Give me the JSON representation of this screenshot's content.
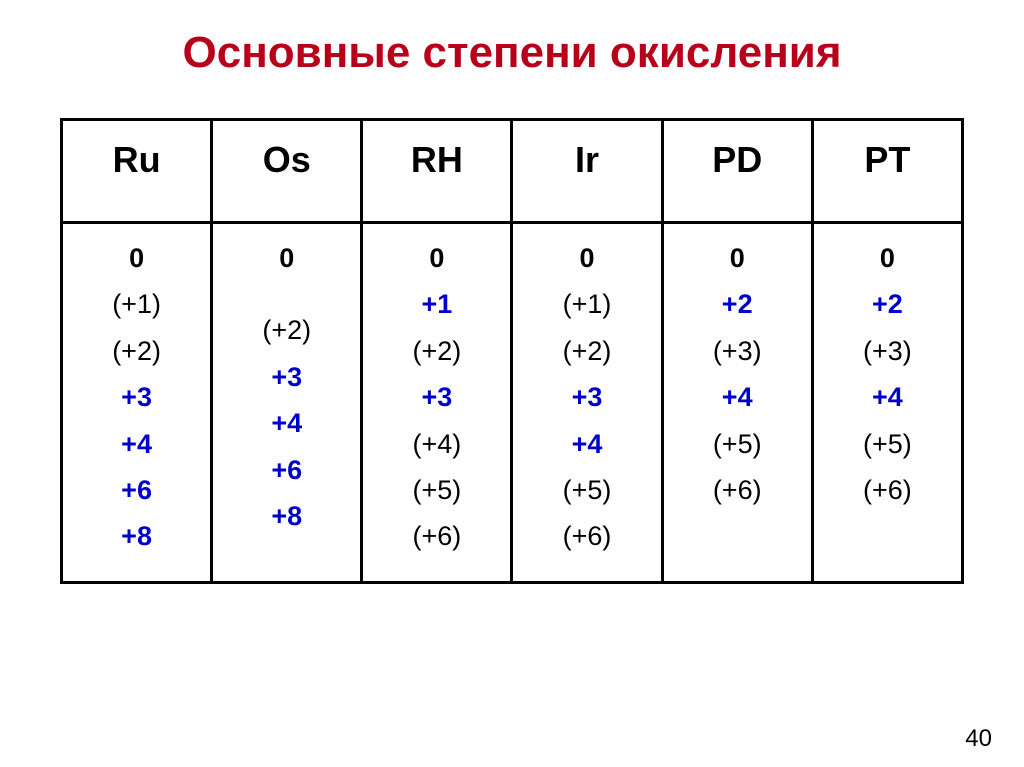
{
  "title": "Основные степени окисления",
  "page_number": "40",
  "colors": {
    "title": "#b8001a",
    "major": "#0000cc",
    "text": "#000000",
    "border": "#000000",
    "background": "#ffffff"
  },
  "table": {
    "columns": [
      "Ru",
      "Os",
      "RH",
      "Ir",
      "PD",
      "PT"
    ],
    "cells": [
      {
        "values": [
          {
            "text": "0",
            "style": "zero"
          },
          {
            "text": "(+1)",
            "style": "minor"
          },
          {
            "text": "(+2)",
            "style": "minor"
          },
          {
            "text": "+3",
            "style": "major"
          },
          {
            "text": "+4",
            "style": "major"
          },
          {
            "text": "+6",
            "style": "major"
          },
          {
            "text": "+8",
            "style": "major"
          }
        ]
      },
      {
        "values": [
          {
            "text": "0",
            "style": "zero"
          },
          {
            "text": "",
            "style": "spacer"
          },
          {
            "text": "(+2)",
            "style": "minor"
          },
          {
            "text": "+3",
            "style": "major"
          },
          {
            "text": "+4",
            "style": "major"
          },
          {
            "text": "+6",
            "style": "major"
          },
          {
            "text": "+8",
            "style": "major"
          }
        ]
      },
      {
        "values": [
          {
            "text": "0",
            "style": "zero"
          },
          {
            "text": "+1",
            "style": "major"
          },
          {
            "text": "(+2)",
            "style": "minor"
          },
          {
            "text": "+3",
            "style": "major"
          },
          {
            "text": "(+4)",
            "style": "minor"
          },
          {
            "text": "(+5)",
            "style": "minor"
          },
          {
            "text": "(+6)",
            "style": "minor"
          }
        ]
      },
      {
        "values": [
          {
            "text": "0",
            "style": "zero"
          },
          {
            "text": "(+1)",
            "style": "minor"
          },
          {
            "text": "(+2)",
            "style": "minor"
          },
          {
            "text": "+3",
            "style": "major"
          },
          {
            "text": "+4",
            "style": "major"
          },
          {
            "text": "(+5)",
            "style": "minor"
          },
          {
            "text": "(+6)",
            "style": "minor"
          }
        ]
      },
      {
        "values": [
          {
            "text": "0",
            "style": "zero"
          },
          {
            "text": "+2",
            "style": "major"
          },
          {
            "text": "(+3)",
            "style": "minor"
          },
          {
            "text": "+4",
            "style": "major"
          },
          {
            "text": "(+5)",
            "style": "minor"
          },
          {
            "text": "(+6)",
            "style": "minor"
          }
        ]
      },
      {
        "values": [
          {
            "text": "0",
            "style": "zero"
          },
          {
            "text": "+2",
            "style": "major"
          },
          {
            "text": "(+3)",
            "style": "minor"
          },
          {
            "text": "+4",
            "style": "major"
          },
          {
            "text": "(+5)",
            "style": "minor"
          },
          {
            "text": "(+6)",
            "style": "minor"
          }
        ]
      }
    ]
  }
}
